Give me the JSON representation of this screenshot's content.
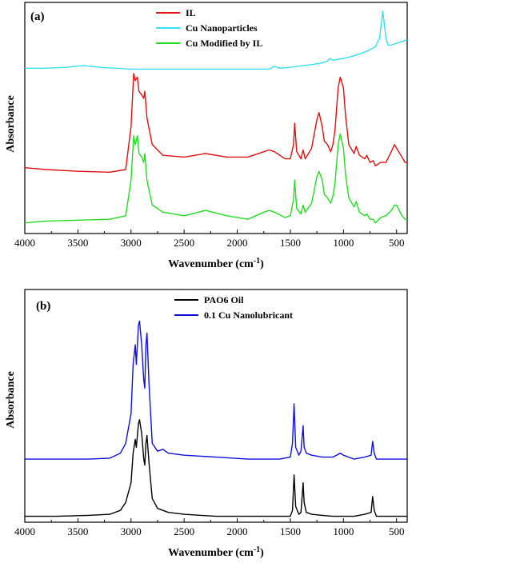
{
  "chart_data": [
    {
      "type": "line",
      "panel_label": "(a)",
      "xlabel": "Wavenumber (cm⁻¹)",
      "ylabel": "Absorbance",
      "xlim": [
        4000,
        400
      ],
      "x_reversed": true,
      "xticks": [
        4000,
        3500,
        3000,
        2500,
        2000,
        1500,
        1000,
        500
      ],
      "yticks_shown": false,
      "legend_position": "top-center",
      "series": [
        {
          "name": "IL",
          "color": "#e01010",
          "x": [
            4000,
            3800,
            3500,
            3200,
            3050,
            3000,
            2975,
            2960,
            2940,
            2925,
            2900,
            2880,
            2870,
            2850,
            2800,
            2700,
            2500,
            2300,
            2100,
            1900,
            1750,
            1700,
            1650,
            1550,
            1500,
            1470,
            1460,
            1440,
            1400,
            1380,
            1360,
            1300,
            1250,
            1230,
            1200,
            1180,
            1150,
            1120,
            1100,
            1080,
            1050,
            1030,
            1000,
            980,
            950,
            900,
            880,
            850,
            800,
            780,
            750,
            720,
            700,
            650,
            600,
            550,
            520,
            500,
            450,
            420,
            400
          ],
          "values": [
            0.37,
            0.36,
            0.35,
            0.345,
            0.36,
            0.6,
            0.9,
            0.86,
            0.88,
            0.8,
            0.78,
            0.76,
            0.8,
            0.65,
            0.5,
            0.44,
            0.43,
            0.45,
            0.43,
            0.43,
            0.46,
            0.47,
            0.46,
            0.42,
            0.42,
            0.5,
            0.62,
            0.46,
            0.42,
            0.47,
            0.42,
            0.48,
            0.64,
            0.68,
            0.6,
            0.52,
            0.5,
            0.46,
            0.5,
            0.58,
            0.82,
            0.88,
            0.82,
            0.66,
            0.5,
            0.45,
            0.49,
            0.44,
            0.42,
            0.44,
            0.4,
            0.41,
            0.38,
            0.4,
            0.4,
            0.46,
            0.5,
            0.48,
            0.43,
            0.4,
            0.4
          ],
          "offset": 0
        },
        {
          "name": "Cu Nanoparticles",
          "color": "#33e1f1",
          "x": [
            4000,
            3800,
            3600,
            3450,
            3300,
            3000,
            2700,
            2400,
            2100,
            1800,
            1700,
            1650,
            1600,
            1500,
            1300,
            1200,
            1150,
            1130,
            1100,
            1000,
            900,
            800,
            700,
            660,
            640,
            630,
            620,
            600,
            580,
            550,
            500,
            450,
            400
          ],
          "values": [
            0.93,
            0.93,
            0.935,
            0.945,
            0.935,
            0.925,
            0.925,
            0.925,
            0.925,
            0.925,
            0.925,
            0.94,
            0.93,
            0.935,
            0.95,
            0.96,
            0.97,
            0.985,
            0.975,
            0.985,
            1.0,
            1.02,
            1.05,
            1.1,
            1.2,
            1.25,
            1.2,
            1.1,
            1.06,
            1.06,
            1.07,
            1.08,
            1.09
          ],
          "offset": 0
        },
        {
          "name": "Cu Modified by IL",
          "color": "#22dd22",
          "x": [
            4000,
            3800,
            3500,
            3200,
            3050,
            3000,
            2975,
            2960,
            2940,
            2925,
            2900,
            2880,
            2870,
            2850,
            2800,
            2700,
            2500,
            2300,
            2100,
            1900,
            1750,
            1700,
            1650,
            1550,
            1500,
            1470,
            1460,
            1440,
            1400,
            1380,
            1360,
            1300,
            1250,
            1230,
            1200,
            1180,
            1150,
            1120,
            1100,
            1080,
            1050,
            1030,
            1000,
            980,
            950,
            900,
            880,
            850,
            800,
            780,
            750,
            720,
            700,
            650,
            600,
            550,
            520,
            500,
            450,
            420,
            400
          ],
          "values": [
            0.06,
            0.07,
            0.075,
            0.08,
            0.1,
            0.3,
            0.55,
            0.5,
            0.55,
            0.45,
            0.43,
            0.4,
            0.45,
            0.3,
            0.16,
            0.12,
            0.1,
            0.13,
            0.1,
            0.08,
            0.12,
            0.13,
            0.12,
            0.09,
            0.1,
            0.19,
            0.3,
            0.14,
            0.11,
            0.16,
            0.12,
            0.17,
            0.32,
            0.35,
            0.3,
            0.22,
            0.2,
            0.17,
            0.21,
            0.28,
            0.5,
            0.56,
            0.48,
            0.33,
            0.2,
            0.15,
            0.18,
            0.12,
            0.1,
            0.11,
            0.08,
            0.08,
            0.06,
            0.09,
            0.1,
            0.13,
            0.16,
            0.16,
            0.1,
            0.08,
            0.08
          ],
          "offset": 0
        }
      ]
    },
    {
      "type": "line",
      "panel_label": "(b)",
      "xlabel": "Wavenumber (cm⁻¹)",
      "ylabel": "Absorbance",
      "xlim": [
        4000,
        400
      ],
      "x_reversed": true,
      "xticks": [
        4000,
        3500,
        3000,
        2500,
        2000,
        1500,
        1000,
        500
      ],
      "yticks_shown": false,
      "legend_position": "top-center",
      "series": [
        {
          "name": "PAO6 Oil",
          "color": "#000000",
          "x": [
            4000,
            3700,
            3400,
            3200,
            3100,
            3050,
            3000,
            2980,
            2960,
            2950,
            2930,
            2920,
            2900,
            2880,
            2870,
            2860,
            2850,
            2830,
            2800,
            2750,
            2700,
            2650,
            2500,
            2200,
            1900,
            1600,
            1500,
            1480,
            1465,
            1450,
            1420,
            1400,
            1380,
            1370,
            1350,
            1300,
            1200,
            1100,
            1000,
            900,
            800,
            740,
            725,
            710,
            690,
            600,
            500,
            400
          ],
          "values": [
            0.03,
            0.03,
            0.035,
            0.04,
            0.06,
            0.1,
            0.2,
            0.35,
            0.42,
            0.38,
            0.5,
            0.52,
            0.45,
            0.32,
            0.29,
            0.4,
            0.44,
            0.3,
            0.12,
            0.07,
            0.06,
            0.05,
            0.04,
            0.03,
            0.03,
            0.03,
            0.03,
            0.06,
            0.24,
            0.08,
            0.04,
            0.05,
            0.2,
            0.1,
            0.05,
            0.04,
            0.035,
            0.03,
            0.03,
            0.03,
            0.04,
            0.05,
            0.13,
            0.06,
            0.03,
            0.03,
            0.03,
            0.03
          ],
          "offset": 0
        },
        {
          "name": "0.1 Cu Nanolubricant",
          "color": "#1010dd",
          "x": [
            4000,
            3700,
            3400,
            3200,
            3100,
            3050,
            3000,
            2980,
            2960,
            2950,
            2930,
            2920,
            2900,
            2880,
            2870,
            2860,
            2850,
            2830,
            2800,
            2750,
            2700,
            2650,
            2500,
            2200,
            1900,
            1600,
            1500,
            1480,
            1465,
            1450,
            1420,
            1400,
            1380,
            1370,
            1350,
            1300,
            1200,
            1100,
            1030,
            1000,
            900,
            800,
            740,
            725,
            710,
            690,
            600,
            500,
            400
          ],
          "values": [
            0.32,
            0.32,
            0.32,
            0.325,
            0.35,
            0.4,
            0.55,
            0.8,
            0.9,
            0.8,
            1.0,
            1.02,
            0.9,
            0.72,
            0.68,
            0.9,
            0.96,
            0.7,
            0.4,
            0.36,
            0.37,
            0.35,
            0.34,
            0.33,
            0.32,
            0.32,
            0.33,
            0.4,
            0.6,
            0.38,
            0.34,
            0.36,
            0.49,
            0.38,
            0.35,
            0.34,
            0.33,
            0.33,
            0.35,
            0.34,
            0.32,
            0.33,
            0.34,
            0.41,
            0.35,
            0.32,
            0.32,
            0.32,
            0.32
          ],
          "offset": 0
        }
      ]
    }
  ]
}
